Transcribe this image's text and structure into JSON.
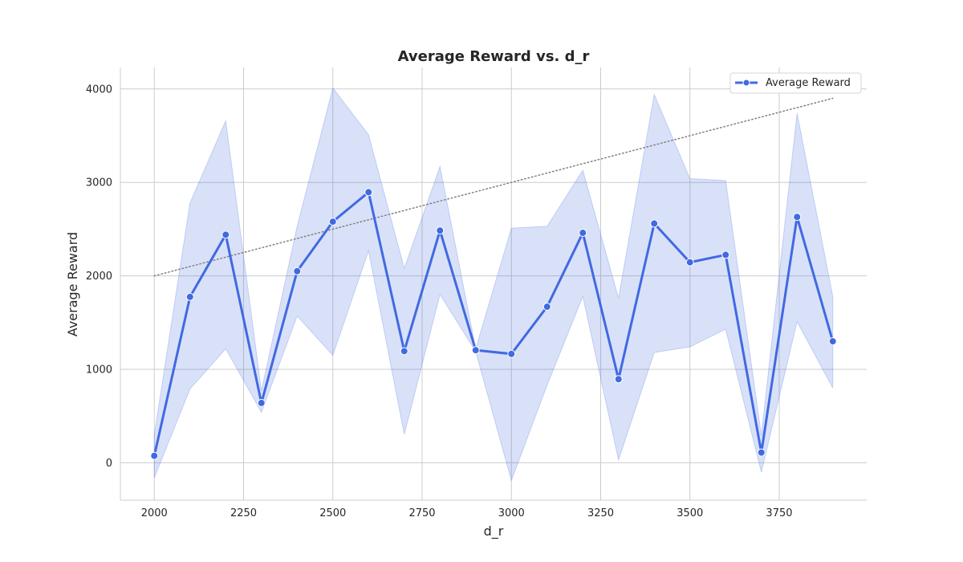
{
  "chart_data": {
    "type": "line",
    "title": "Average Reward vs. d_r",
    "xlabel": "d_r",
    "ylabel": "Average Reward",
    "xlim": [
      1905,
      3995
    ],
    "ylim": [
      -400,
      4230
    ],
    "xticks": [
      2000,
      2250,
      2500,
      2750,
      3000,
      3250,
      3500,
      3750
    ],
    "yticks": [
      0,
      1000,
      2000,
      3000,
      4000
    ],
    "grid": true,
    "legend": {
      "position": "top-right",
      "entries": [
        "Average Reward"
      ]
    },
    "series": [
      {
        "name": "Average Reward",
        "color": "#4169e1",
        "x": [
          2000,
          2100,
          2200,
          2300,
          2400,
          2500,
          2600,
          2700,
          2800,
          2900,
          3000,
          3100,
          3200,
          3300,
          3400,
          3500,
          3600,
          3700,
          3800,
          3900
        ],
        "y": [
          75,
          1775,
          2440,
          640,
          2050,
          2580,
          2895,
          1195,
          2485,
          1205,
          1165,
          1670,
          2460,
          895,
          2560,
          2145,
          2225,
          110,
          2630,
          1300
        ],
        "band_upper": [
          300,
          2780,
          3660,
          770,
          2530,
          4010,
          3510,
          2080,
          3170,
          1220,
          2510,
          2530,
          3130,
          1760,
          3940,
          3040,
          3020,
          290,
          3740,
          1780
        ],
        "band_lower": [
          -160,
          790,
          1220,
          540,
          1570,
          1150,
          2270,
          305,
          1800,
          1190,
          -190,
          830,
          1780,
          30,
          1180,
          1240,
          1430,
          -100,
          1510,
          800
        ]
      }
    ],
    "trend_line": {
      "x": [
        2000,
        3900
      ],
      "y": [
        2000,
        3900
      ],
      "color": "#808080",
      "style": "dotted"
    }
  }
}
